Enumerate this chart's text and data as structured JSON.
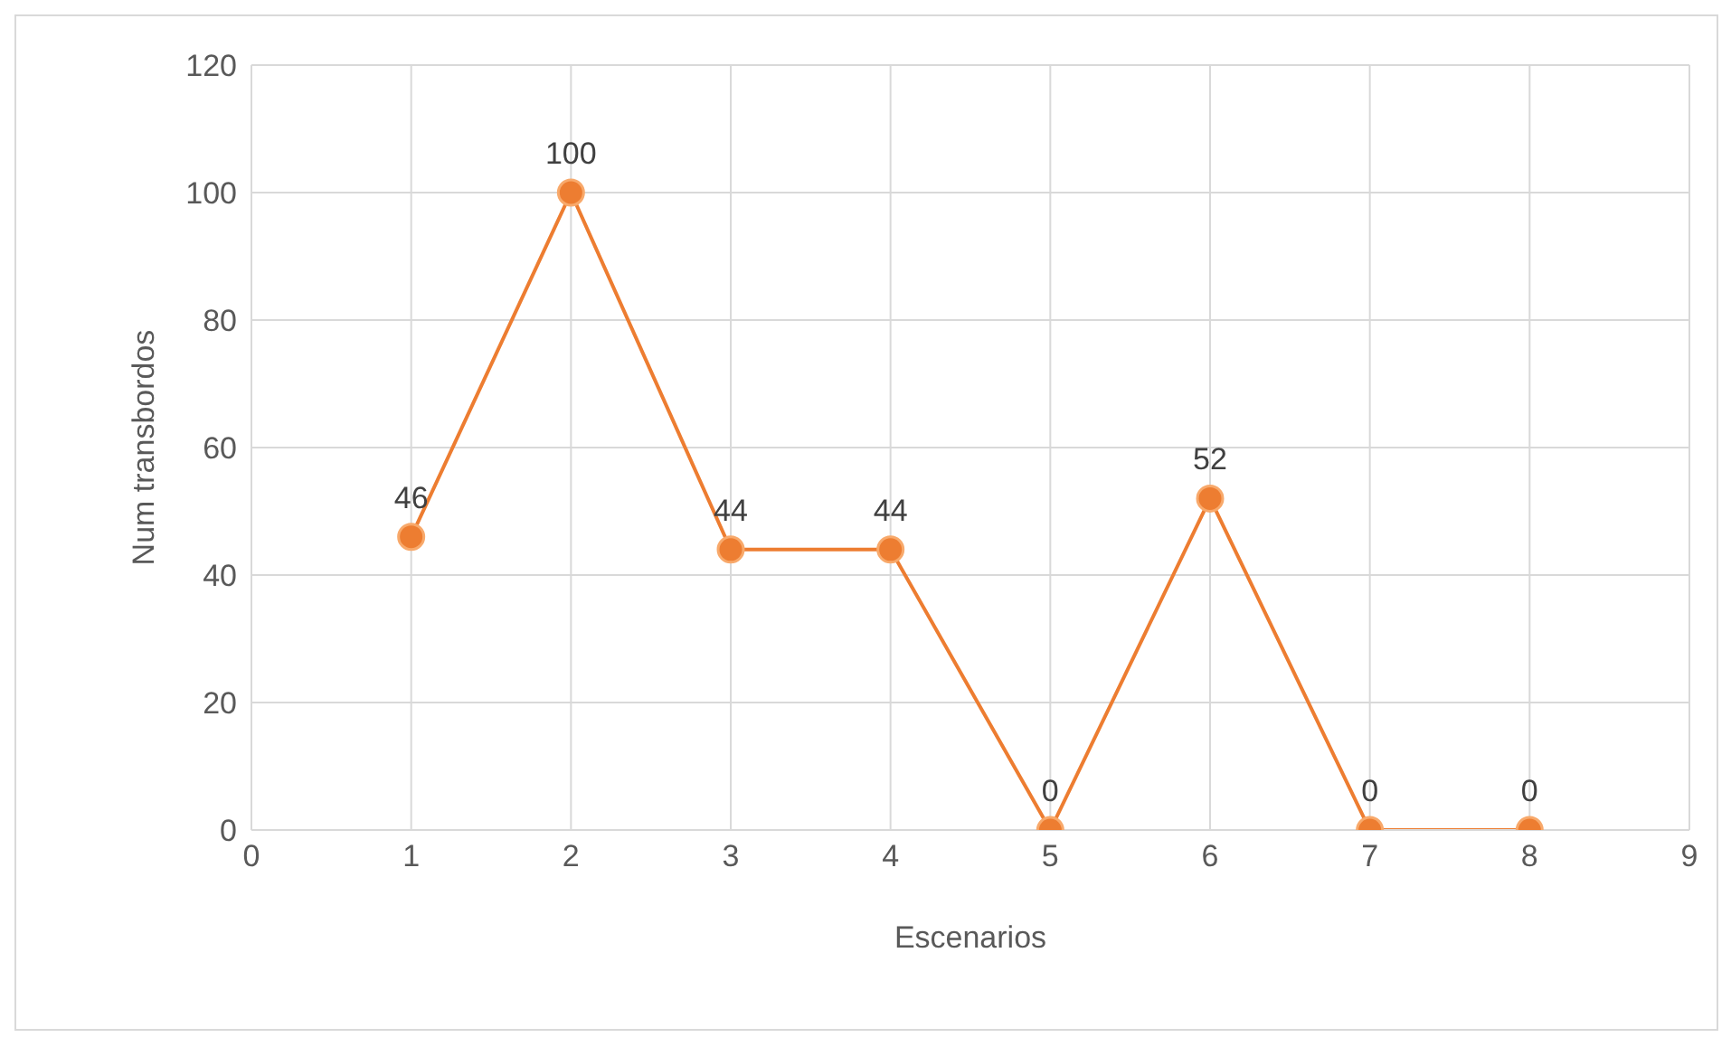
{
  "chart_data": {
    "type": "line",
    "xlabel": "Escenarios",
    "ylabel": "Num transbordos",
    "x": [
      1,
      2,
      3,
      4,
      5,
      6,
      7,
      8
    ],
    "series": [
      {
        "color": "#ed7d31",
        "values": [
          46,
          100,
          44,
          44,
          0,
          52,
          0,
          0
        ]
      }
    ],
    "xlim": [
      0,
      9
    ],
    "xticks": [
      0,
      1,
      2,
      3,
      4,
      5,
      6,
      7,
      8,
      9
    ],
    "ylim": [
      0,
      120
    ],
    "yticks": [
      0,
      20,
      40,
      60,
      80,
      100,
      120
    ],
    "grid": true,
    "marker": "circle",
    "data_labels": true,
    "legend": false
  }
}
